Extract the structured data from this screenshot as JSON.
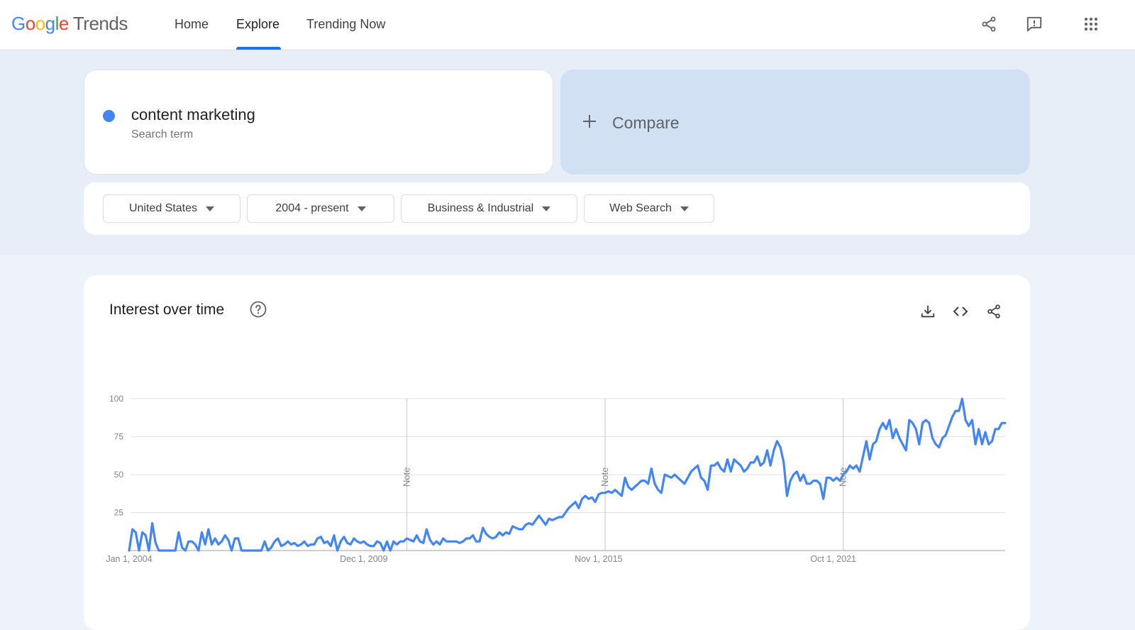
{
  "app": {
    "logo_google": [
      "G",
      "o",
      "o",
      "g",
      "l",
      "e"
    ],
    "logo_product": "Trends"
  },
  "nav": {
    "items": [
      {
        "label": "Home",
        "active": false
      },
      {
        "label": "Explore",
        "active": true
      },
      {
        "label": "Trending Now",
        "active": false
      }
    ]
  },
  "top_icons": [
    "share-icon",
    "feedback-icon",
    "apps-grid-icon"
  ],
  "search": {
    "term": "content marketing",
    "term_type": "Search term",
    "term_color": "#4285f4",
    "compare_label": "Compare"
  },
  "filters": {
    "region": "United States",
    "time_range": "2004 - present",
    "category": "Business & Industrial",
    "search_type": "Web Search"
  },
  "chart_card": {
    "title": "Interest over time",
    "actions": [
      "download-icon",
      "embed-icon",
      "share-icon"
    ]
  },
  "colors": {
    "accent": "#1a73e8",
    "series": "#4285f4",
    "compare_bg": "#d2e0f3"
  },
  "chart_data": {
    "type": "line",
    "ylim": [
      0,
      100
    ],
    "yticks": [
      25,
      50,
      75,
      100
    ],
    "grid": true,
    "x_tick_labels": [
      "Jan 1, 2004",
      "Dec 1, 2009",
      "Nov 1, 2015",
      "Oct 1, 2021"
    ],
    "note_label": "Note",
    "note_dates": [
      "2011-01",
      "2016-01",
      "2022-01"
    ],
    "series": [
      {
        "name": "content marketing",
        "start": "2004-01",
        "frequency": "monthly",
        "values": [
          0,
          14,
          12,
          0,
          12,
          10,
          0,
          18,
          5,
          0,
          0,
          0,
          0,
          0,
          0,
          12,
          2,
          0,
          6,
          6,
          4,
          0,
          12,
          4,
          14,
          4,
          8,
          4,
          6,
          10,
          7,
          0,
          8,
          8,
          0,
          0,
          0,
          0,
          0,
          0,
          0,
          6,
          0,
          2,
          6,
          8,
          3,
          4,
          6,
          4,
          5,
          3,
          4,
          6,
          3,
          4,
          4,
          8,
          9,
          5,
          6,
          3,
          10,
          0,
          6,
          9,
          5,
          4,
          8,
          6,
          5,
          6,
          4,
          3,
          3,
          6,
          5,
          0,
          6,
          0,
          6,
          4,
          6,
          6,
          8,
          7,
          6,
          10,
          6,
          5,
          14,
          7,
          4,
          6,
          4,
          8,
          6,
          6,
          6,
          6,
          5,
          6,
          8,
          8,
          10,
          6,
          6,
          15,
          11,
          9,
          8,
          9,
          12,
          10,
          12,
          11,
          16,
          15,
          14,
          14,
          17,
          18,
          17,
          20,
          23,
          20,
          17,
          21,
          20,
          21,
          22,
          22,
          25,
          28,
          30,
          32,
          28,
          34,
          36,
          34,
          35,
          32,
          37,
          38,
          38,
          39,
          38,
          40,
          38,
          36,
          48,
          42,
          40,
          42,
          44,
          46,
          46,
          44,
          54,
          44,
          40,
          38,
          50,
          49,
          48,
          50,
          48,
          46,
          44,
          48,
          52,
          54,
          56,
          48,
          46,
          40,
          56,
          56,
          58,
          54,
          52,
          60,
          52,
          60,
          58,
          56,
          52,
          54,
          58,
          58,
          62,
          56,
          58,
          66,
          56,
          66,
          72,
          68,
          58,
          36,
          46,
          50,
          52,
          46,
          50,
          44,
          44,
          46,
          46,
          44,
          34,
          48,
          48,
          46,
          48,
          46,
          50,
          52,
          56,
          54,
          56,
          52,
          62,
          72,
          60,
          70,
          72,
          80,
          84,
          80,
          86,
          74,
          80,
          74,
          70,
          66,
          86,
          84,
          80,
          70,
          84,
          86,
          84,
          74,
          70,
          68,
          74,
          76,
          82,
          88,
          92,
          92,
          100,
          86,
          82,
          86,
          70,
          80,
          70,
          78,
          70,
          72,
          80,
          80,
          84,
          84
        ]
      }
    ]
  }
}
